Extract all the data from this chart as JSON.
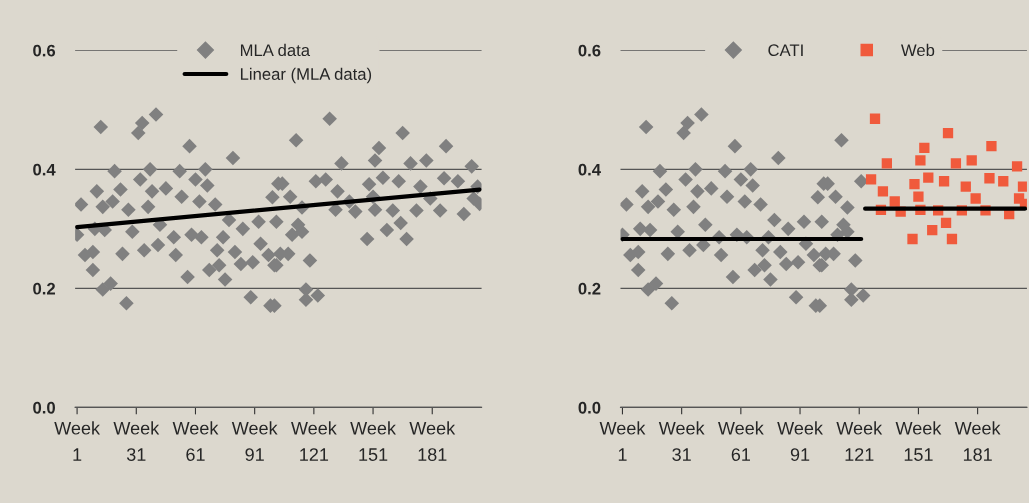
{
  "chart_data": [
    {
      "type": "scatter",
      "xlim": [
        0,
        206
      ],
      "ylim": [
        0,
        0.6
      ],
      "yticks": [
        {
          "value": 0,
          "label": "0.0"
        },
        0.2,
        0.4,
        0.6
      ],
      "xlabel": "Week",
      "xticks": [
        1,
        31,
        61,
        91,
        121,
        151,
        181
      ],
      "grid": "y",
      "legend": "top",
      "series": [
        {
          "name": "MLA data",
          "marker": "diamond",
          "color": "#808080",
          "x": [
            13,
            34,
            32,
            41,
            58,
            80,
            20,
            38,
            33,
            11,
            23,
            53,
            66,
            61,
            67,
            3,
            14,
            19,
            27,
            37,
            39,
            46,
            54,
            63,
            71,
            1,
            10,
            15,
            29,
            43,
            50,
            59,
            64,
            75,
            78,
            85,
            93,
            5,
            9,
            24,
            35,
            42,
            51,
            72,
            81,
            94,
            9,
            68,
            73,
            57,
            76,
            84,
            90,
            98,
            14,
            18,
            26,
            89,
            99,
            101,
            103,
            100,
            105,
            109,
            115,
            102,
            113,
            110,
            115,
            104,
            108,
            119,
            102,
            117,
            117,
            123,
            101,
            122,
            112,
            129,
            166,
            154,
            188,
            135,
            152,
            170,
            178,
            201,
            127,
            149,
            156,
            164,
            175,
            187,
            194,
            204,
            133,
            139,
            151,
            180,
            202,
            205,
            132,
            142,
            152,
            161,
            173,
            185,
            197,
            165,
            148,
            158,
            168
          ],
          "values": [
            0.471,
            0.478,
            0.461,
            0.492,
            0.439,
            0.419,
            0.397,
            0.4,
            0.383,
            0.363,
            0.366,
            0.397,
            0.4,
            0.383,
            0.373,
            0.341,
            0.337,
            0.346,
            0.332,
            0.337,
            0.363,
            0.368,
            0.354,
            0.346,
            0.341,
            0.29,
            0.3,
            0.298,
            0.295,
            0.307,
            0.286,
            0.29,
            0.286,
            0.286,
            0.315,
            0.3,
            0.312,
            0.256,
            0.261,
            0.258,
            0.264,
            0.273,
            0.256,
            0.264,
            0.261,
            0.275,
            0.231,
            0.231,
            0.239,
            0.219,
            0.215,
            0.241,
            0.244,
            0.256,
            0.198,
            0.208,
            0.175,
            0.185,
            0.171,
            0.239,
            0.376,
            0.353,
            0.376,
            0.354,
            0.336,
            0.312,
            0.307,
            0.29,
            0.295,
            0.258,
            0.258,
            0.247,
            0.239,
            0.198,
            0.181,
            0.188,
            0.171,
            0.38,
            0.449,
            0.485,
            0.461,
            0.436,
            0.439,
            0.41,
            0.415,
            0.41,
            0.415,
            0.405,
            0.383,
            0.375,
            0.386,
            0.38,
            0.371,
            0.385,
            0.38,
            0.371,
            0.363,
            0.346,
            0.354,
            0.351,
            0.351,
            0.342,
            0.332,
            0.329,
            0.332,
            0.331,
            0.331,
            0.331,
            0.325,
            0.31,
            0.283,
            0.298,
            0.283
          ]
        },
        {
          "name": "Linear (MLA data)",
          "type": "line",
          "marker": "none",
          "color": "#000000",
          "x": [
            1,
            205
          ],
          "values": [
            0.303,
            0.366
          ]
        }
      ]
    },
    {
      "type": "scatter",
      "xlim": [
        0,
        206
      ],
      "ylim": [
        0,
        0.6
      ],
      "yticks": [
        {
          "value": 0,
          "label": "0.0"
        },
        0.2,
        0.4,
        0.6
      ],
      "xlabel": "Week",
      "xticks": [
        1,
        31,
        61,
        91,
        121,
        151,
        181
      ],
      "grid": "y",
      "legend": "top",
      "series": [
        {
          "name": "CATI",
          "marker": "diamond",
          "color": "#808080",
          "x": [
            13,
            34,
            32,
            41,
            58,
            80,
            20,
            38,
            33,
            11,
            23,
            53,
            66,
            61,
            67,
            3,
            14,
            19,
            27,
            37,
            39,
            46,
            54,
            63,
            71,
            1,
            10,
            15,
            29,
            43,
            50,
            59,
            64,
            75,
            78,
            85,
            93,
            5,
            9,
            24,
            35,
            42,
            51,
            72,
            81,
            94,
            9,
            68,
            73,
            57,
            76,
            84,
            90,
            98,
            14,
            18,
            26,
            89,
            99,
            101,
            103,
            100,
            105,
            109,
            115,
            102,
            113,
            110,
            115,
            104,
            108,
            119,
            102,
            117,
            117,
            123,
            101,
            122,
            112
          ],
          "values": [
            0.471,
            0.478,
            0.461,
            0.492,
            0.439,
            0.419,
            0.397,
            0.4,
            0.383,
            0.363,
            0.366,
            0.397,
            0.4,
            0.383,
            0.373,
            0.341,
            0.337,
            0.346,
            0.332,
            0.337,
            0.363,
            0.368,
            0.354,
            0.346,
            0.341,
            0.29,
            0.3,
            0.298,
            0.295,
            0.307,
            0.286,
            0.29,
            0.286,
            0.286,
            0.315,
            0.3,
            0.312,
            0.256,
            0.261,
            0.258,
            0.264,
            0.273,
            0.256,
            0.264,
            0.261,
            0.275,
            0.231,
            0.231,
            0.239,
            0.219,
            0.215,
            0.241,
            0.244,
            0.256,
            0.198,
            0.208,
            0.175,
            0.185,
            0.171,
            0.239,
            0.376,
            0.353,
            0.376,
            0.354,
            0.336,
            0.312,
            0.307,
            0.29,
            0.295,
            0.258,
            0.258,
            0.247,
            0.239,
            0.198,
            0.181,
            0.188,
            0.171,
            0.38,
            0.449
          ]
        },
        {
          "name": "Web",
          "marker": "square",
          "color": "#f05a3c",
          "x": [
            129,
            166,
            154,
            188,
            135,
            152,
            170,
            178,
            201,
            127,
            149,
            156,
            164,
            175,
            187,
            194,
            204,
            133,
            139,
            151,
            180,
            202,
            205,
            132,
            142,
            152,
            161,
            173,
            185,
            197,
            165,
            148,
            158,
            168
          ],
          "values": [
            0.485,
            0.461,
            0.436,
            0.439,
            0.41,
            0.415,
            0.41,
            0.415,
            0.405,
            0.383,
            0.375,
            0.386,
            0.38,
            0.371,
            0.385,
            0.38,
            0.371,
            0.363,
            0.346,
            0.354,
            0.351,
            0.351,
            0.342,
            0.332,
            0.329,
            0.332,
            0.331,
            0.331,
            0.331,
            0.325,
            0.31,
            0.283,
            0.298,
            0.283
          ]
        },
        {
          "type": "line",
          "marker": "none",
          "color": "#000000",
          "x": [
            1,
            122
          ],
          "values": [
            0.283,
            0.283
          ]
        },
        {
          "type": "line",
          "marker": "none",
          "color": "#000000",
          "x": [
            124,
            205
          ],
          "values": [
            0.334,
            0.334
          ]
        }
      ]
    }
  ]
}
